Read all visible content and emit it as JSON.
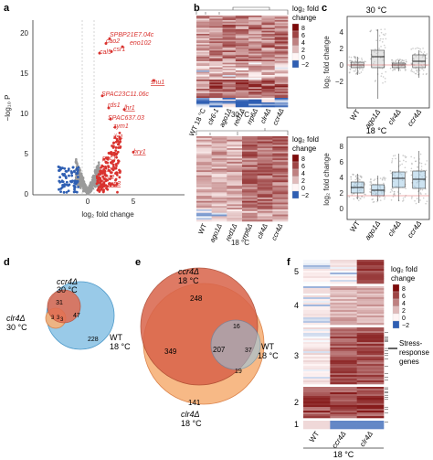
{
  "panels": {
    "a": {
      "label": "a",
      "xlabel": "log₂ fold change",
      "ylabel": "−log₁₀ P",
      "xticks": [
        "0",
        "5"
      ],
      "yticks": [
        "0",
        "5",
        "10",
        "15",
        "20"
      ],
      "genes": [
        "SPBP21E7.04c",
        "cao2",
        "eno102",
        "csr1",
        "cal5",
        "shu1",
        "SPAC23C11.06c",
        "rds1",
        "lhr1",
        "SPAC637.03",
        "zym1",
        "ifs1",
        "hry1",
        "pnc1",
        "trl1",
        "grn3",
        "gst2"
      ],
      "colors": {
        "up": "#d9322e",
        "down": "#2f5fb3",
        "ns": "#9a9a9a"
      }
    },
    "b": {
      "label": "b",
      "legend_title": [
        "log₂ fold",
        "change"
      ],
      "legend_ticks": [
        "8",
        "6",
        "4",
        "2",
        "0",
        "−2"
      ],
      "top": {
        "temp": "30 °C",
        "columns": [
          "WT 18 °C",
          "clr6-1",
          "ago1Δ",
          "red1Δ",
          "rrp6Δ",
          "clr4Δ",
          "ccr4Δ"
        ]
      },
      "bottom": {
        "temp": "18 °C",
        "columns": [
          "WT",
          "ago1Δ",
          "red1Δ",
          "rrp6Δ",
          "clr4Δ",
          "ccr4Δ"
        ]
      }
    },
    "c": {
      "label": "c",
      "ylabel": "log₂ fold change",
      "top": {
        "temp": "30 °C",
        "yticks": [
          "4",
          "2",
          "0",
          "−2"
        ],
        "categories": [
          "WT",
          "ago1Δ",
          "clr4Δ",
          "ccr4Δ"
        ]
      },
      "bottom": {
        "temp": "18 °C",
        "yticks": [
          "8",
          "6",
          "4",
          "2",
          "0"
        ],
        "categories": [
          "WT",
          "ago1Δ",
          "clr4Δ",
          "ccr4Δ"
        ]
      }
    },
    "d": {
      "label": "d",
      "sets": [
        {
          "name": "ccr4Δ",
          "temp": "30 °C"
        },
        {
          "name": "clr4Δ",
          "temp": "30 °C"
        },
        {
          "name": "WT",
          "temp": "18 °C"
        }
      ],
      "counts": [
        "31",
        "3",
        "47",
        "228",
        "3",
        "3"
      ]
    },
    "e": {
      "label": "e",
      "sets": [
        {
          "name": "ccr4Δ",
          "temp": "18 °C"
        },
        {
          "name": "clr4Δ",
          "temp": "18 °C"
        },
        {
          "name": "WT",
          "temp": "18 °C"
        }
      ],
      "counts": [
        "248",
        "349",
        "207",
        "16",
        "37",
        "19",
        "141"
      ]
    },
    "f": {
      "label": "f",
      "clusters": [
        "5",
        "4",
        "3",
        "2",
        "1"
      ],
      "columns": [
        "WT",
        "ccr4Δ",
        "clr4Δ"
      ],
      "temp": "18 °C",
      "legend_title": [
        "log₂ fold",
        "change"
      ],
      "legend_ticks": [
        "8",
        "6",
        "4",
        "2",
        "0",
        "−2"
      ],
      "annotation": [
        "Stress-",
        "response",
        "genes"
      ]
    }
  }
}
